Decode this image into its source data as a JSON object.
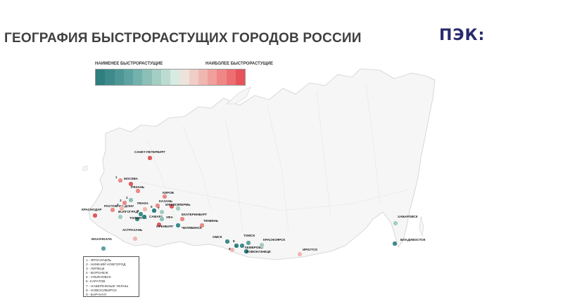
{
  "header": {
    "title": "ГЕОГРАФИЯ БЫСТРОРАСТУЩИХ ГОРОДОВ РОССИИ",
    "logo_text": "ПЭК:"
  },
  "legend": {
    "low_label": "НАИМЕНЕЕ БЫСТРОРАСТУЩИЕ",
    "high_label": "НАИБОЛЕЕ БЫСТРОРАСТУЩИЕ",
    "scale_colors": [
      "#2f7f80",
      "#3e8a8a",
      "#4e9696",
      "#5ea3a1",
      "#73b1ac",
      "#8cbfb8",
      "#a4cdc4",
      "#bcdcd2",
      "#d6ebe2",
      "#ede3dc",
      "#f0cdc6",
      "#f0b7b1",
      "#f09f9c",
      "#ef8787",
      "#ec6e71",
      "#e6535a"
    ]
  },
  "cities": [
    {
      "name": "САНКТ-ПЕТЕРБУРГ",
      "color": "#e05a5f"
    },
    {
      "name": "МОСКВА",
      "color": "#e05a5f"
    },
    {
      "name": "РЯЗАНЬ",
      "color": "#e88a87"
    },
    {
      "name": "РОСТОВ-НА-ДОНУ",
      "color": "#e88a87"
    },
    {
      "name": "КРАСНОДАР",
      "color": "#e05a5f"
    },
    {
      "name": "ВОЛГОГРАД",
      "color": "#a4cdc4"
    },
    {
      "name": "ПЕНЗА",
      "color": "#f0b7b1"
    },
    {
      "name": "КАЗАНЬ",
      "color": "#e88a87"
    },
    {
      "name": "КИРОВ",
      "color": "#e88a87"
    },
    {
      "name": "ИЖЕВСК",
      "color": "#e05a5f"
    },
    {
      "name": "ПЕРМЬ",
      "color": "#a4cdc4"
    },
    {
      "name": "ТОЛЬЯТТИ",
      "color": "#3e8a8a"
    },
    {
      "name": "САМАРА",
      "color": "#2f7f80"
    },
    {
      "name": "УФА",
      "color": "#8cbfb8"
    },
    {
      "name": "ЕКАТЕРИНБУРГ",
      "color": "#e88a87"
    },
    {
      "name": "ТЮМЕНЬ",
      "color": "#e88a87"
    },
    {
      "name": "ЧЕЛЯБИНСК",
      "color": "#3e8a8a"
    },
    {
      "name": "ОРЕНБУРГ",
      "color": "#e05a5f"
    },
    {
      "name": "АСТРАХАНЬ",
      "color": "#f0b7b1"
    },
    {
      "name": "МАХАЧКАЛА",
      "color": "#5ea3a1"
    },
    {
      "name": "ОМСК",
      "color": "#3e8a8a"
    },
    {
      "name": "ТОМСК",
      "color": "#5ea3a1"
    },
    {
      "name": "КЕМЕРОВО",
      "color": "#3e8a8a"
    },
    {
      "name": "НОВОКУЗНЕЦК",
      "color": "#2f7f80"
    },
    {
      "name": "КРАСНОЯРСК",
      "color": "#a4cdc4"
    },
    {
      "name": "ИРКУТСК",
      "color": "#f0b7b1"
    },
    {
      "name": "ХАБАРОВСК",
      "color": "#a4cdc4"
    },
    {
      "name": "ВЛАДИВОСТОК",
      "color": "#3e8a8a"
    },
    {
      "name": "1",
      "color": "#e88a87"
    },
    {
      "name": "2",
      "color": "#8cbfb8"
    },
    {
      "name": "3",
      "color": "#e88a87"
    },
    {
      "name": "4",
      "color": "#f0b7b1"
    },
    {
      "name": "5",
      "color": "#2f7f80"
    },
    {
      "name": "6",
      "color": "#3e8a8a"
    },
    {
      "name": "7",
      "color": "#a4cdc4"
    },
    {
      "name": "8",
      "color": "#2f7f80"
    },
    {
      "name": "9",
      "color": "#f0b7b1"
    }
  ],
  "key": {
    "items": [
      "1 - ЯРОСЛАВЛЬ",
      "2 - НИЖНИЙ НОВГОРОД",
      "3 - ЛИПЕЦК",
      "4 - ВОРОНЕЖ",
      "5 - УЛЬЯНОВСК",
      "6 -САРАТОВ",
      "7 - НАБЕРЕЖНЫЕ ЧЕЛНЫ",
      "8 - НОВОСИБИРСК",
      "9 - БАРНАУЛ"
    ]
  }
}
